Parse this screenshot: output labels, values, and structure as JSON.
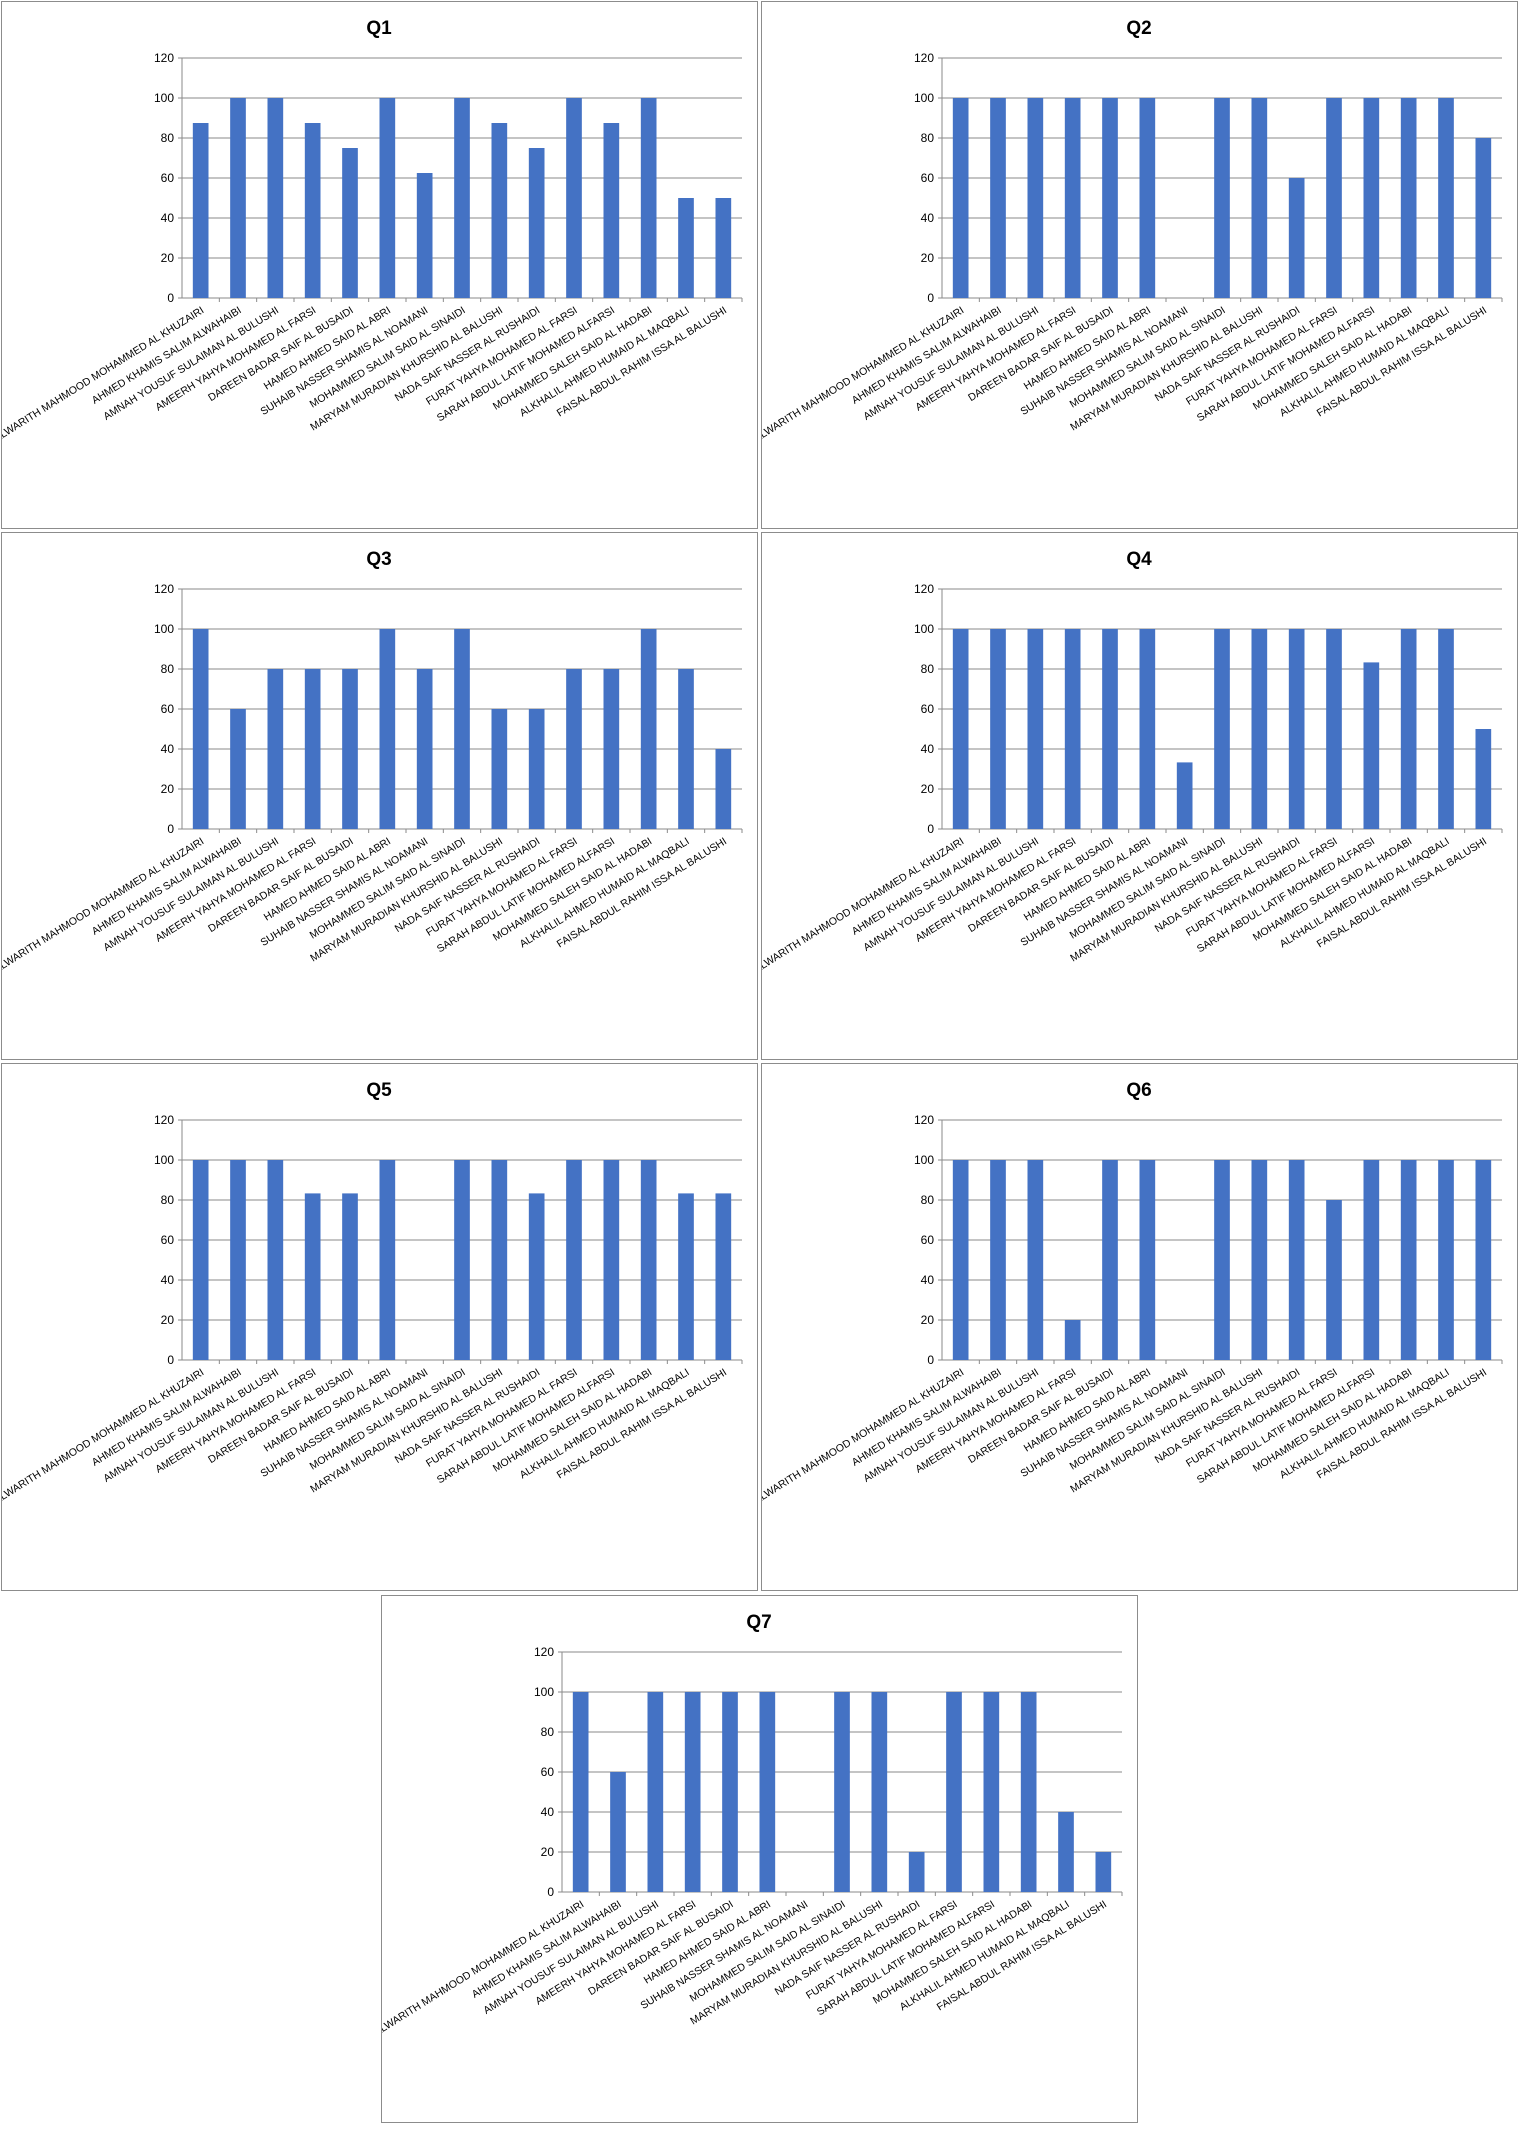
{
  "colors": {
    "bar": "#4472c4",
    "grid": "#8a8a8a"
  },
  "students": [
    "ALWARITH MAHMOOD MOHAMMED AL KHUZAIRI",
    "AHMED KHAMIS SALIM ALWAHAIBI",
    "AMNAH YOUSUF SULAIMAN AL BULUSHI",
    "AMEERH YAHYA MOHAMED  AL FARSI",
    "DAREEN BADAR SAIF AL BUSAIDI",
    "HAMED AHMED SAID AL ABRI",
    "SUHAIB NASSER SHAMIS AL NOAMANI",
    "MOHAMMED SALIM SAID AL SINAIDI",
    "MARYAM MURADIAN KHURSHID AL BALUSHI",
    "NADA SAIF NASSER AL RUSHAIDI",
    "FURAT YAHYA MOHAMED  AL FARSI",
    "SARAH ABDUL LATIF MOHAMED ALFARSI",
    "MOHAMMED SALEH SAID AL HADABI",
    "ALKHALIL AHMED HUMAID AL MAQBALI",
    "FAISAL ABDUL RAHIM ISSA AL BALUSHI"
  ],
  "chart_data": [
    {
      "type": "bar",
      "title": "Q1",
      "ylim": [
        0,
        120
      ],
      "yticks": [
        "0",
        "20",
        "40",
        "60",
        "80",
        "100",
        "120"
      ],
      "grid": true,
      "legend": "none",
      "values": [
        87.5,
        100,
        100,
        87.5,
        75,
        100,
        62.5,
        100,
        87.5,
        75,
        100,
        87.5,
        100,
        50,
        50
      ]
    },
    {
      "type": "bar",
      "title": "Q2",
      "ylim": [
        0,
        120
      ],
      "yticks": [
        "0",
        "20",
        "40",
        "60",
        "80",
        "100",
        "120"
      ],
      "grid": true,
      "legend": "none",
      "values": [
        100,
        100,
        100,
        100,
        100,
        100,
        0,
        100,
        100,
        60,
        100,
        100,
        100,
        100,
        80
      ]
    },
    {
      "type": "bar",
      "title": "Q3",
      "ylim": [
        0,
        120
      ],
      "yticks": [
        "0",
        "20",
        "40",
        "60",
        "80",
        "100",
        "120"
      ],
      "grid": true,
      "legend": "none",
      "values": [
        100,
        60,
        80,
        80,
        80,
        100,
        80,
        100,
        60,
        60,
        80,
        80,
        100,
        80,
        40
      ]
    },
    {
      "type": "bar",
      "title": "Q4",
      "ylim": [
        0,
        120
      ],
      "yticks": [
        "0",
        "20",
        "40",
        "60",
        "80",
        "100",
        "120"
      ],
      "grid": true,
      "legend": "none",
      "values": [
        100,
        100,
        100,
        100,
        100,
        100,
        33.3,
        100,
        100,
        100,
        100,
        83.3,
        100,
        100,
        50
      ]
    },
    {
      "type": "bar",
      "title": "Q5",
      "ylim": [
        0,
        120
      ],
      "yticks": [
        "0",
        "20",
        "40",
        "60",
        "80",
        "100",
        "120"
      ],
      "grid": true,
      "legend": "none",
      "values": [
        100,
        100,
        100,
        83.3,
        83.3,
        100,
        0,
        100,
        100,
        83.3,
        100,
        100,
        100,
        83.3,
        83.3
      ]
    },
    {
      "type": "bar",
      "title": "Q6",
      "ylim": [
        0,
        120
      ],
      "yticks": [
        "0",
        "20",
        "40",
        "60",
        "80",
        "100",
        "120"
      ],
      "grid": true,
      "legend": "none",
      "values": [
        100,
        100,
        100,
        20,
        100,
        100,
        0,
        100,
        100,
        100,
        80,
        100,
        100,
        100,
        100
      ]
    },
    {
      "type": "bar",
      "title": "Q7",
      "ylim": [
        0,
        120
      ],
      "yticks": [
        "0",
        "20",
        "40",
        "60",
        "80",
        "100",
        "120"
      ],
      "grid": true,
      "legend": "none",
      "values": [
        100,
        60,
        100,
        100,
        100,
        100,
        0,
        100,
        100,
        20,
        100,
        100,
        100,
        40,
        20
      ]
    }
  ]
}
